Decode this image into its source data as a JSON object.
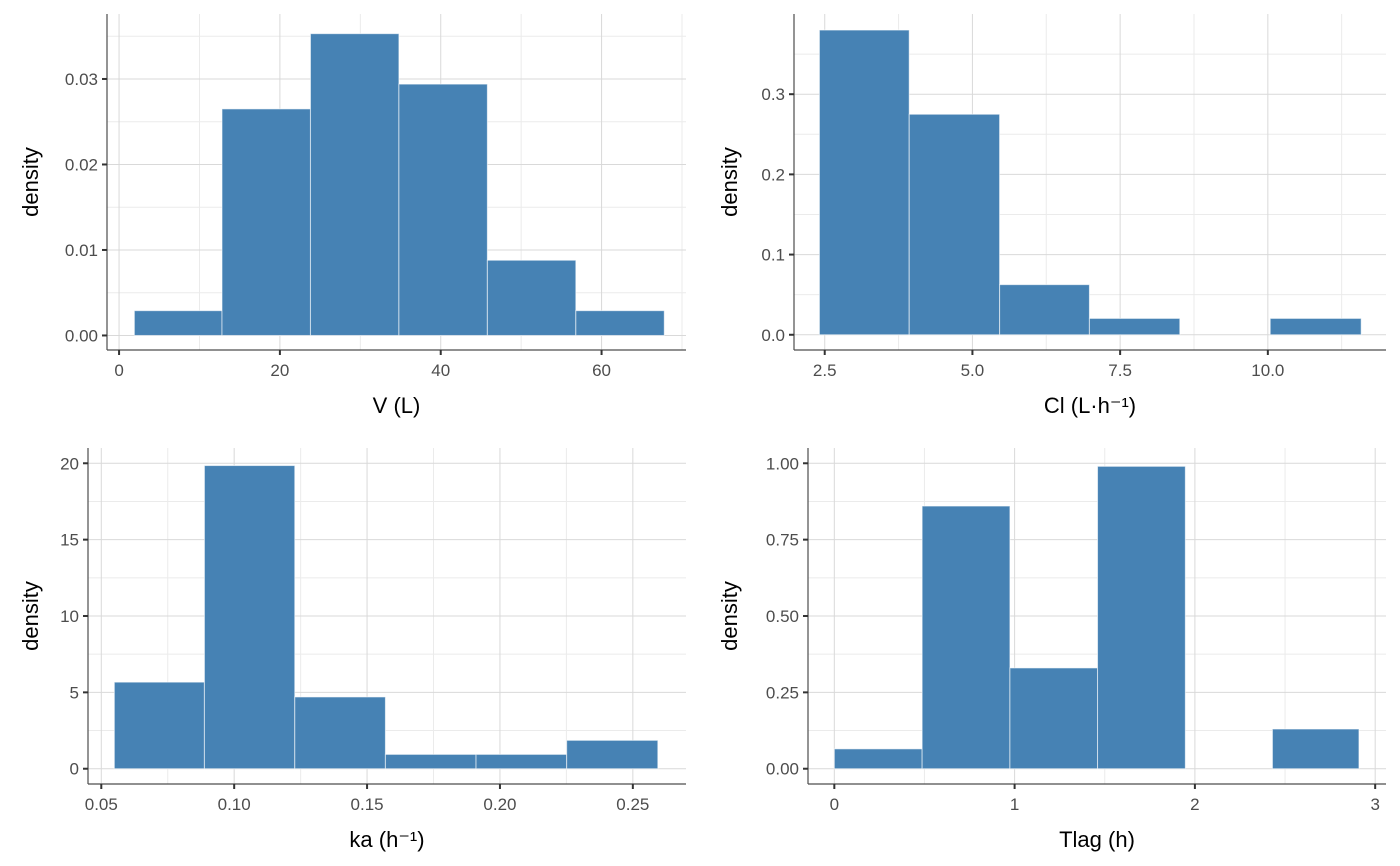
{
  "bar_color": "#4682B4",
  "chart_data": [
    {
      "type": "bar",
      "title": "",
      "xlabel": "V (L)",
      "ylabel": "density",
      "xlim": [
        -1.5,
        70.5
      ],
      "ylim": [
        -0.0017,
        0.0376
      ],
      "x_ticks": [
        0,
        20,
        40,
        60
      ],
      "x_tick_labels": [
        "0",
        "20",
        "40",
        "60"
      ],
      "y_ticks": [
        0,
        0.01,
        0.02,
        0.03
      ],
      "y_tick_labels": [
        "0.00",
        "0.01",
        "0.02",
        "0.03"
      ],
      "x_minor": [
        10,
        30,
        50,
        70
      ],
      "y_minor": [
        0.005,
        0.015,
        0.025,
        0.035
      ],
      "bin_edges": [
        1.9,
        12.8,
        23.8,
        34.8,
        45.8,
        56.8,
        67.8
      ],
      "values": [
        0.0029,
        0.0265,
        0.0353,
        0.0294,
        0.0088,
        0.0029
      ],
      "grid": true
    },
    {
      "type": "bar",
      "title": "",
      "xlabel": "Cl (L·h⁻¹)",
      "ylabel": "density",
      "xlim": [
        1.98,
        12.0
      ],
      "ylim": [
        -0.019,
        0.4
      ],
      "x_ticks": [
        2.5,
        5.0,
        7.5,
        10.0
      ],
      "x_tick_labels": [
        "2.5",
        "5.0",
        "7.5",
        "10.0"
      ],
      "y_ticks": [
        0,
        0.1,
        0.2,
        0.3
      ],
      "y_tick_labels": [
        "0.0",
        "0.1",
        "0.2",
        "0.3"
      ],
      "x_minor": [
        3.75,
        6.25,
        8.75,
        11.25
      ],
      "y_minor": [
        0.05,
        0.15,
        0.25,
        0.35
      ],
      "bin_edges": [
        2.41,
        3.93,
        5.46,
        6.98,
        8.51,
        10.04,
        11.58
      ],
      "values": [
        0.38,
        0.275,
        0.0625,
        0.0204,
        0,
        0.0204
      ],
      "grid": true
    },
    {
      "type": "bar",
      "title": "",
      "xlabel": "ka (h⁻¹)",
      "ylabel": "density",
      "xlim": [
        0.045,
        0.27
      ],
      "ylim": [
        -1.0,
        21.0
      ],
      "x_ticks": [
        0.05,
        0.1,
        0.15,
        0.2,
        0.25
      ],
      "x_tick_labels": [
        "0.05",
        "0.10",
        "0.15",
        "0.20",
        "0.25"
      ],
      "y_ticks": [
        0,
        5,
        10,
        15,
        20
      ],
      "y_tick_labels": [
        "0",
        "5",
        "10",
        "15",
        "20"
      ],
      "x_minor": [
        0.075,
        0.125,
        0.175,
        0.225
      ],
      "y_minor": [
        2.5,
        7.5,
        12.5,
        17.5
      ],
      "bin_edges": [
        0.0549,
        0.0888,
        0.1228,
        0.1569,
        0.191,
        0.2251,
        0.2594
      ],
      "values": [
        5.67,
        19.85,
        4.7,
        0.94,
        0.94,
        1.86
      ],
      "grid": true
    },
    {
      "type": "bar",
      "title": "",
      "xlabel": "Tlag (h)",
      "ylabel": "density",
      "xlim": [
        -0.146,
        3.06
      ],
      "ylim": [
        -0.05,
        1.05
      ],
      "x_ticks": [
        0,
        1,
        2,
        3
      ],
      "x_tick_labels": [
        "0",
        "1",
        "2",
        "3"
      ],
      "y_ticks": [
        0,
        0.25,
        0.5,
        0.75,
        1.0
      ],
      "y_tick_labels": [
        "0.00",
        "0.25",
        "0.50",
        "0.75",
        "1.00"
      ],
      "x_minor": [
        0.5,
        1.5,
        2.5
      ],
      "y_minor": [
        0.125,
        0.375,
        0.625,
        0.875
      ],
      "bin_edges": [
        0.0,
        0.487,
        0.974,
        1.46,
        1.947,
        2.43,
        2.91
      ],
      "values": [
        0.065,
        0.86,
        0.33,
        0.99,
        0,
        0.13
      ],
      "grid": true
    }
  ]
}
